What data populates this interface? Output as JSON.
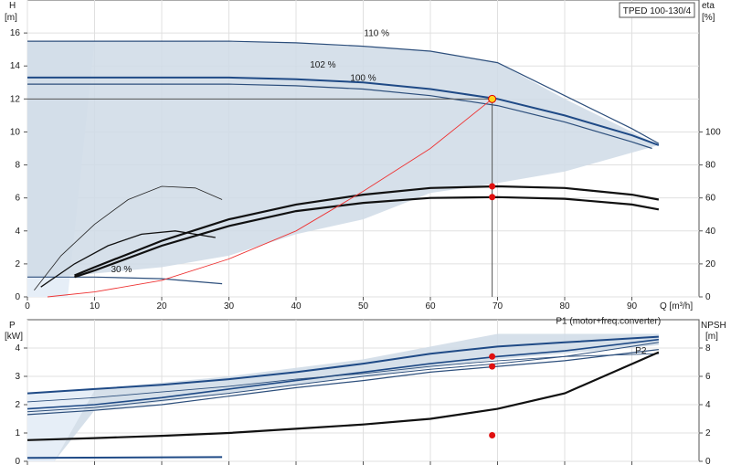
{
  "chart_data": [
    {
      "type": "line",
      "title": "TPED 100-130/4",
      "xlabel": "Q [m³/h]",
      "ylabel_left": "H\n[m]",
      "ylabel_right": "eta\n[%]",
      "xlim": [
        0,
        100
      ],
      "xticks": [
        0,
        10,
        20,
        30,
        40,
        50,
        60,
        70,
        80,
        90
      ],
      "ylim": [
        0,
        18
      ],
      "yticks": [
        0,
        2,
        4,
        6,
        8,
        10,
        12,
        14,
        16
      ],
      "y2lim": [
        0,
        180
      ],
      "y2ticks": [
        0,
        20,
        40,
        60,
        80,
        100
      ],
      "grid": true,
      "operating_region": {
        "x": [
          0,
          2,
          7,
          20,
          40,
          60,
          70,
          80,
          93,
          94,
          80,
          70,
          60,
          50,
          40,
          30,
          20,
          7,
          1,
          0
        ],
        "y": [
          15.5,
          15.5,
          15.5,
          15.5,
          15.4,
          14.9,
          14.2,
          12.0,
          9.4,
          9.2,
          7.6,
          6.9,
          6.3,
          4.7,
          3.8,
          2.5,
          1.8,
          1.3,
          1.2,
          1.2
        ]
      },
      "series": [
        {
          "name": "110 %",
          "x": [
            0,
            10,
            20,
            30,
            40,
            50,
            60,
            70,
            80,
            90,
            94
          ],
          "y": [
            15.5,
            15.5,
            15.5,
            15.5,
            15.4,
            15.2,
            14.9,
            14.2,
            12.2,
            10.2,
            9.3
          ]
        },
        {
          "name": "102 %",
          "x": [
            0,
            10,
            20,
            30,
            40,
            50,
            60,
            65,
            70,
            80,
            90,
            94
          ],
          "y": [
            13.3,
            13.3,
            13.3,
            13.3,
            13.2,
            13.0,
            12.6,
            12.3,
            12.0,
            11.0,
            9.8,
            9.2
          ]
        },
        {
          "name": "100 %",
          "x": [
            0,
            10,
            20,
            30,
            40,
            50,
            60,
            70,
            80,
            90,
            93
          ],
          "y": [
            12.9,
            12.9,
            12.9,
            12.9,
            12.8,
            12.6,
            12.2,
            11.6,
            10.6,
            9.4,
            9.0
          ]
        },
        {
          "name": "30 %",
          "x": [
            0,
            10,
            20,
            29
          ],
          "y": [
            1.2,
            1.2,
            1.1,
            0.8
          ]
        },
        {
          "name": "",
          "x": [
            1,
            5,
            10,
            15,
            20,
            25,
            29
          ],
          "y": [
            0.4,
            2.5,
            4.4,
            5.9,
            6.7,
            6.6,
            5.9
          ]
        },
        {
          "name": "",
          "x": [
            2,
            7,
            12,
            17,
            22,
            28
          ],
          "y": [
            0.6,
            2.0,
            3.1,
            3.8,
            4.0,
            3.6
          ]
        },
        {
          "name": "",
          "x": [
            7,
            10,
            20,
            30,
            40,
            50,
            60,
            70,
            80,
            90,
            94
          ],
          "y": [
            1.3,
            1.8,
            3.4,
            4.7,
            5.6,
            6.2,
            6.6,
            6.7,
            6.6,
            6.2,
            5.9
          ]
        },
        {
          "name": "",
          "x": [
            7,
            10,
            20,
            30,
            40,
            50,
            60,
            70,
            80,
            90,
            94
          ],
          "y": [
            1.2,
            1.6,
            3.1,
            4.3,
            5.2,
            5.7,
            6.0,
            6.05,
            5.95,
            5.6,
            5.3
          ]
        },
        {
          "name": "",
          "x": [
            3,
            10,
            20,
            30,
            40,
            50,
            60,
            69.2
          ],
          "y": [
            0,
            0.3,
            1.0,
            2.3,
            4.0,
            6.4,
            9.0,
            12.0
          ]
        }
      ],
      "operating_point": {
        "x": 69.2,
        "y": 12.0
      },
      "markers": [
        {
          "x": 69.2,
          "y": 6.7
        },
        {
          "x": 69.2,
          "y": 6.05
        }
      ],
      "annotations": [
        "110 %",
        "102 %",
        "100 %",
        "30 %"
      ]
    },
    {
      "type": "line",
      "xlabel": "",
      "ylabel_left": "P\n[kW]",
      "ylabel_right": "NPSH\n[m]",
      "xlim": [
        0,
        100
      ],
      "xticks": [
        0,
        10,
        20,
        30,
        40,
        50,
        60,
        70,
        80,
        90
      ],
      "ylim": [
        0,
        5
      ],
      "yticks": [
        0,
        1,
        2,
        3,
        4
      ],
      "y2lim": [
        0,
        10
      ],
      "y2ticks": [
        0,
        2,
        4,
        6,
        8
      ],
      "grid": true,
      "power_region": {
        "x": [
          0,
          10,
          30,
          50,
          70,
          94,
          94,
          70,
          50,
          30,
          10,
          4,
          0
        ],
        "y": [
          2.4,
          2.55,
          3.0,
          3.6,
          4.5,
          4.5,
          4.1,
          3.6,
          3.0,
          2.4,
          1.8,
          0,
          0
        ]
      },
      "series": [
        {
          "name": "P1 (motor+freq.converter)",
          "x": [
            0,
            10,
            20,
            30,
            40,
            50,
            60,
            70,
            80,
            94
          ],
          "y": [
            2.4,
            2.55,
            2.7,
            2.9,
            3.15,
            3.45,
            3.8,
            4.05,
            4.2,
            4.4
          ]
        },
        {
          "name": "",
          "x": [
            0,
            10,
            20,
            30,
            40,
            50,
            60,
            70,
            80,
            94
          ],
          "y": [
            1.85,
            2.0,
            2.25,
            2.55,
            2.85,
            3.15,
            3.45,
            3.7,
            3.9,
            4.3
          ]
        },
        {
          "name": "",
          "x": [
            0,
            10,
            20,
            30,
            40,
            50,
            60,
            70,
            80,
            94
          ],
          "y": [
            1.75,
            1.9,
            2.15,
            2.4,
            2.7,
            3.0,
            3.25,
            3.45,
            3.7,
            4.2
          ]
        },
        {
          "name": "P2",
          "x": [
            0,
            10,
            20,
            30,
            40,
            50,
            60,
            70,
            80,
            94
          ],
          "y": [
            1.65,
            1.8,
            2.0,
            2.3,
            2.6,
            2.85,
            3.15,
            3.35,
            3.55,
            3.95
          ]
        },
        {
          "name": "",
          "x": [
            0,
            10,
            20,
            30,
            40,
            50,
            60,
            70,
            80,
            94
          ],
          "y": [
            2.1,
            2.25,
            2.45,
            2.65,
            2.9,
            3.1,
            3.35,
            3.55,
            3.7,
            3.8
          ]
        },
        {
          "name": "NPSH",
          "axis": "right",
          "x": [
            0,
            10,
            20,
            30,
            40,
            50,
            60,
            70,
            80,
            94
          ],
          "y": [
            0.75,
            0.82,
            0.9,
            1.0,
            1.15,
            1.3,
            1.5,
            1.85,
            2.4,
            3.85
          ]
        },
        {
          "name": "",
          "x": [
            0,
            29
          ],
          "y": [
            0.12,
            0.15
          ]
        }
      ],
      "markers": [
        {
          "x": 69.2,
          "y": 3.7
        },
        {
          "x": 69.2,
          "y": 3.35
        },
        {
          "x": 69.2,
          "y": 0.92
        }
      ],
      "annotations": [
        "P1 (motor+freq.converter)",
        "P2"
      ]
    }
  ]
}
